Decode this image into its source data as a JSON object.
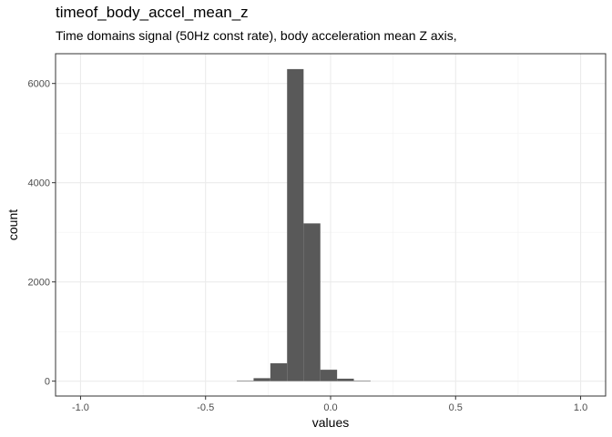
{
  "chart_data": {
    "type": "bar",
    "title": "timeof_body_accel_mean_z",
    "subtitle": "Time domains signal (50Hz const rate), body acceleration mean Z axis,",
    "xlabel": "values",
    "ylabel": "count",
    "xlim": [
      -1.1,
      1.1
    ],
    "ylim": [
      -300,
      6600
    ],
    "x_ticks": [
      -1.0,
      -0.5,
      0.0,
      0.5,
      1.0
    ],
    "x_tick_labels": [
      "-1.0",
      "-0.5",
      "0.0",
      "0.5",
      "1.0"
    ],
    "y_ticks": [
      0,
      2000,
      4000,
      6000
    ],
    "y_tick_labels": [
      "0",
      "2000",
      "4000",
      "6000"
    ],
    "grid": true,
    "bar_color": "#595959",
    "bins": [
      {
        "x0": -0.375,
        "x1": -0.308,
        "count": 10
      },
      {
        "x0": -0.308,
        "x1": -0.241,
        "count": 60
      },
      {
        "x0": -0.241,
        "x1": -0.174,
        "count": 360
      },
      {
        "x0": -0.174,
        "x1": -0.108,
        "count": 6290
      },
      {
        "x0": -0.108,
        "x1": -0.041,
        "count": 3180
      },
      {
        "x0": -0.041,
        "x1": 0.026,
        "count": 230
      },
      {
        "x0": 0.026,
        "x1": 0.093,
        "count": 50
      },
      {
        "x0": 0.093,
        "x1": 0.16,
        "count": 10
      }
    ]
  }
}
